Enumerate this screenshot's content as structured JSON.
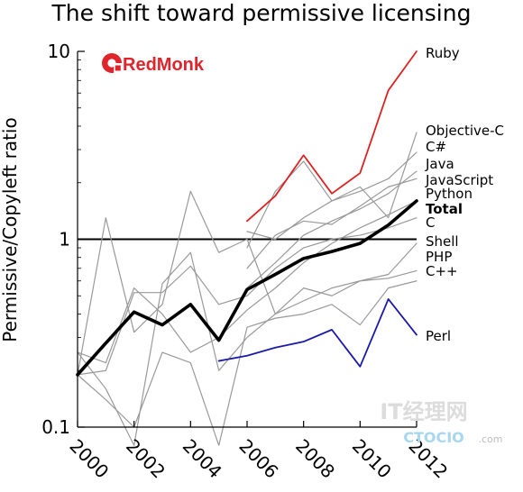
{
  "chart_data": {
    "type": "line",
    "title": "The shift toward permissive licensing",
    "ylabel": "Permissive/Copyleft ratio",
    "xlabel": "",
    "yscale": "log",
    "ylim": [
      0.1,
      10
    ],
    "xlim": [
      2000,
      2012
    ],
    "x_ticks": [
      "2000",
      "2002",
      "2004",
      "2006",
      "2008",
      "2010",
      "2012"
    ],
    "y_ticks": [
      "0.1",
      "1",
      "10"
    ],
    "reference_line": 1,
    "colors": {
      "ruby": "#dd2222",
      "perl": "#1a1aa8",
      "total": "#000000",
      "others": "#999999"
    },
    "series": [
      {
        "name": "Ruby",
        "x": [
          2006,
          2007,
          2008,
          2009,
          2010,
          2011,
          2012
        ],
        "values": [
          1.25,
          1.7,
          2.8,
          1.75,
          2.25,
          6.2,
          10.0
        ]
      },
      {
        "name": "Objective-C",
        "x": [
          2006,
          2007,
          2008,
          2009,
          2010,
          2011,
          2012
        ],
        "values": [
          0.9,
          1.8,
          2.6,
          1.6,
          1.9,
          1.3,
          3.7
        ]
      },
      {
        "name": "C#",
        "x": [
          2006,
          2007,
          2008,
          2009,
          2010,
          2011,
          2012
        ],
        "values": [
          1.1,
          1.0,
          1.3,
          1.6,
          1.8,
          2.1,
          2.9
        ]
      },
      {
        "name": "Java",
        "x": [
          2006,
          2007,
          2008,
          2009,
          2010,
          2011,
          2012
        ],
        "values": [
          0.55,
          0.75,
          1.05,
          1.25,
          1.45,
          1.75,
          2.3
        ]
      },
      {
        "name": "JavaScript",
        "x": [
          2006,
          2007,
          2008,
          2009,
          2010,
          2011,
          2012
        ],
        "values": [
          0.7,
          1.05,
          1.25,
          1.2,
          1.5,
          1.9,
          2.1
        ]
      },
      {
        "name": "Python",
        "x": [
          2000,
          2001,
          2002,
          2003,
          2004,
          2005,
          2006,
          2007,
          2008,
          2009,
          2010,
          2011,
          2012
        ],
        "values": [
          0.25,
          0.22,
          0.55,
          0.4,
          0.25,
          0.3,
          0.42,
          0.55,
          0.75,
          0.95,
          1.15,
          1.35,
          1.6
        ]
      },
      {
        "name": "Total",
        "x": [
          2000,
          2001,
          2002,
          2003,
          2004,
          2005,
          2006,
          2007,
          2008,
          2009,
          2010,
          2011,
          2012
        ],
        "values": [
          0.19,
          0.28,
          0.41,
          0.35,
          0.45,
          0.29,
          0.54,
          0.65,
          0.79,
          0.86,
          0.95,
          1.19,
          1.6
        ]
      },
      {
        "name": "C",
        "x": [
          2000,
          2001,
          2002,
          2003,
          2004,
          2005,
          2006,
          2007,
          2008,
          2009,
          2010,
          2011,
          2012
        ],
        "values": [
          0.19,
          0.2,
          0.52,
          0.52,
          0.72,
          0.45,
          0.5,
          0.7,
          0.9,
          1.0,
          1.05,
          1.15,
          1.3
        ]
      },
      {
        "name": "Shell",
        "x": [
          2000,
          2001,
          2002,
          2003,
          2004,
          2005,
          2006,
          2007,
          2008,
          2009,
          2010,
          2011,
          2012
        ],
        "values": [
          0.19,
          1.3,
          0.32,
          0.45,
          1.8,
          0.85,
          1.0,
          0.4,
          0.55,
          0.5,
          0.6,
          0.65,
          0.95
        ]
      },
      {
        "name": "PHP",
        "x": [
          2000,
          2001,
          2002,
          2003,
          2004,
          2005,
          2006,
          2007,
          2008,
          2009,
          2010,
          2011,
          2012
        ],
        "values": [
          0.25,
          0.16,
          0.08,
          0.58,
          0.85,
          0.2,
          0.3,
          0.4,
          0.47,
          0.55,
          0.6,
          0.62,
          0.68
        ]
      },
      {
        "name": "C++",
        "x": [
          2000,
          2001,
          2002,
          2003,
          2004,
          2005,
          2006,
          2007,
          2008,
          2009,
          2010,
          2011,
          2012
        ],
        "values": [
          0.19,
          0.14,
          0.1,
          0.25,
          0.22,
          0.08,
          0.34,
          0.38,
          0.4,
          0.45,
          0.35,
          0.55,
          0.6
        ]
      },
      {
        "name": "Perl",
        "x": [
          2005,
          2006,
          2007,
          2008,
          2009,
          2010,
          2011,
          2012
        ],
        "values": [
          0.225,
          0.24,
          0.265,
          0.285,
          0.33,
          0.21,
          0.48,
          0.31
        ]
      }
    ]
  },
  "logo": {
    "text": "RedMonk"
  },
  "watermark": {
    "line1": "IT经理网",
    "line2": "CTOCIO",
    "line3": ".com"
  }
}
